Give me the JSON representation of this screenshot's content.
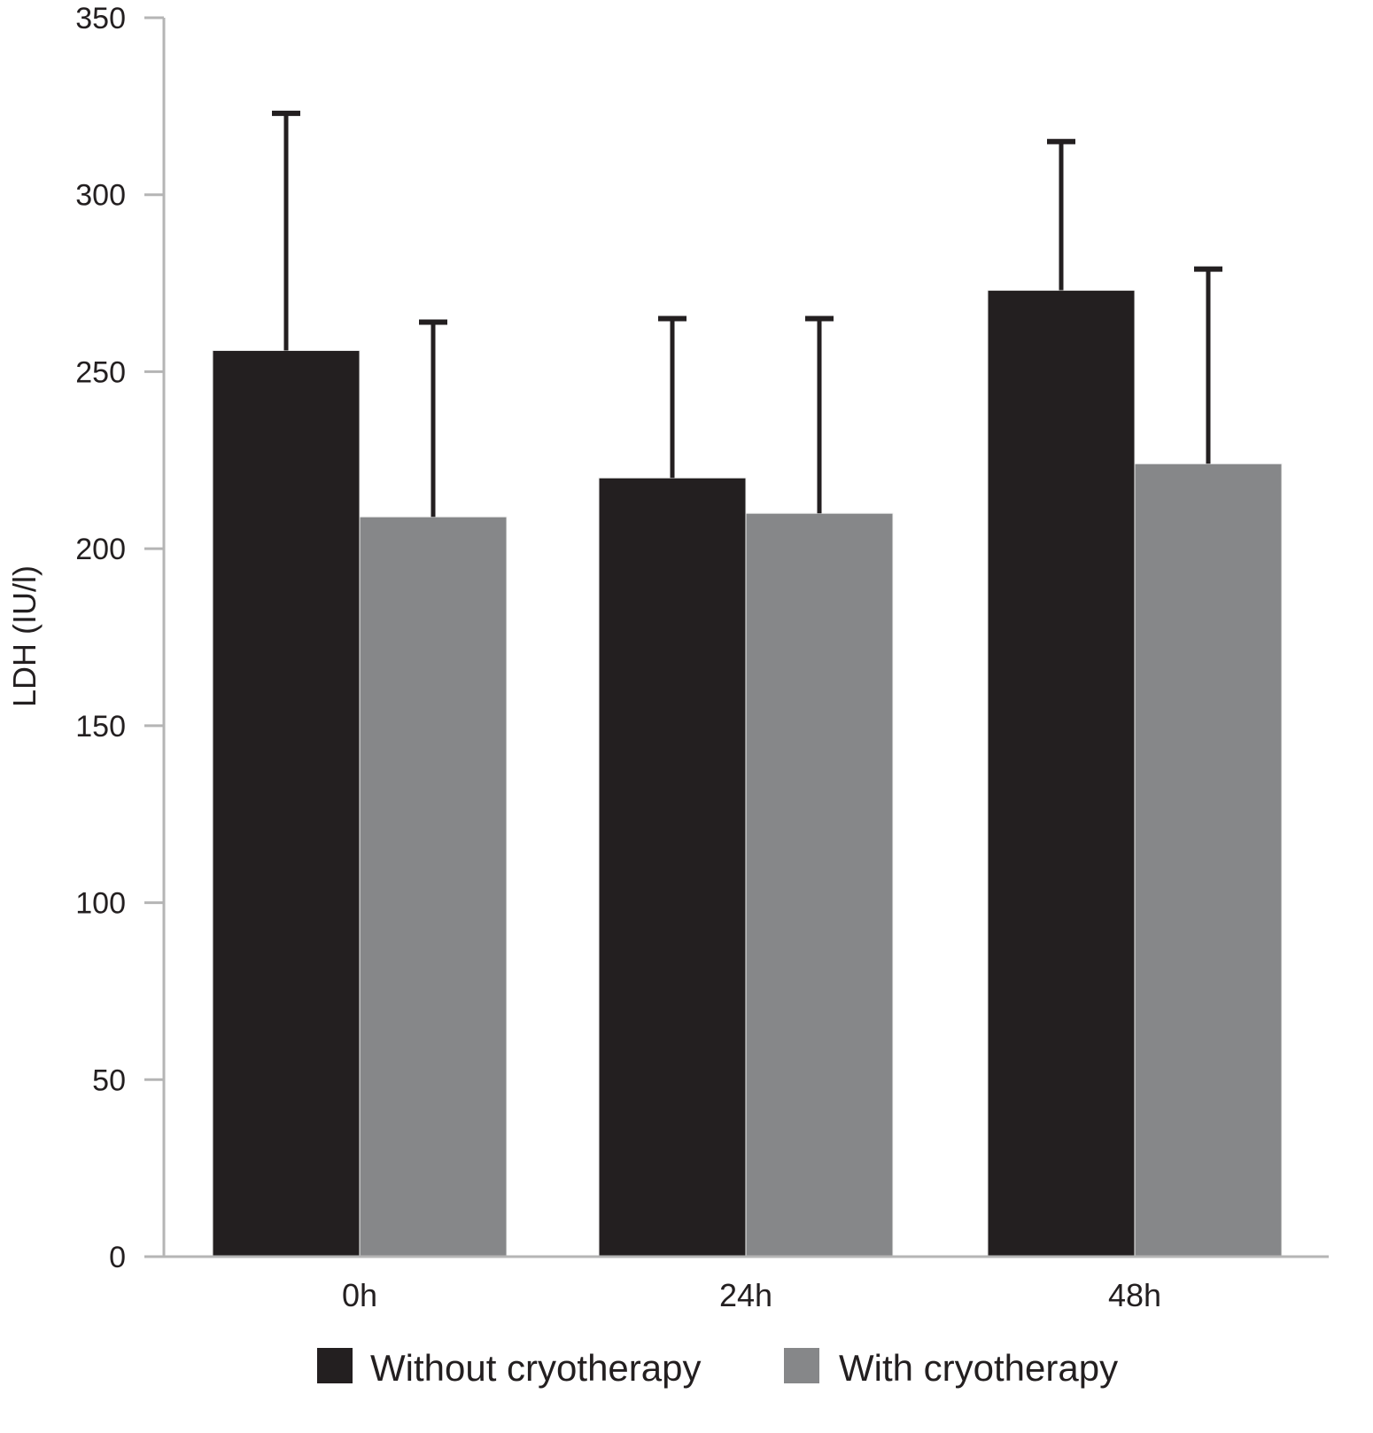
{
  "chart_data": {
    "type": "bar",
    "title": "",
    "xlabel": "",
    "ylabel": "LDH (IU/l)",
    "ylim": [
      0,
      350
    ],
    "yticks": [
      "0",
      "50",
      "100",
      "150",
      "200",
      "250",
      "300",
      "350"
    ],
    "categories": [
      "0h",
      "24h",
      "48h"
    ],
    "grid": false,
    "legend_position": "bottom",
    "series": [
      {
        "name": "Without cryotherapy",
        "color": "#231f20",
        "values": [
          256,
          220,
          273
        ],
        "error_upper": [
          323,
          265,
          315
        ]
      },
      {
        "name": "With cryotherapy",
        "color": "#868789",
        "values": [
          209,
          210,
          224
        ],
        "error_upper": [
          264,
          265,
          279
        ]
      }
    ]
  }
}
